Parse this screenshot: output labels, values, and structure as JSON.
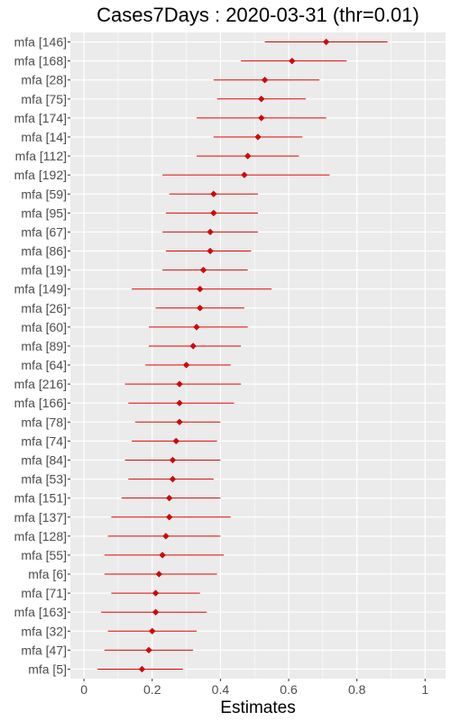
{
  "chart_data": {
    "type": "scatter",
    "subtype": "forest-plot",
    "title": "Cases7Days : 2020-03-31 (thr=0.01)",
    "xlabel": "Estimates",
    "ylabel": "",
    "xlim": [
      -0.04,
      1.06
    ],
    "xticks": [
      0,
      0.2,
      0.4,
      0.6,
      0.8,
      1
    ],
    "xtick_labels": [
      "0",
      "0.2",
      "0.4",
      "0.6",
      "0.8",
      "1"
    ],
    "grid": true,
    "legend": "none",
    "colors": {
      "panel": "#ebebeb",
      "grid": "#ffffff",
      "marker": "#e00000",
      "interval": "#e00000",
      "text": "#4d4d4d"
    },
    "categories": [
      "mfa [146]",
      "mfa [168]",
      "mfa [28]",
      "mfa [75]",
      "mfa [174]",
      "mfa [14]",
      "mfa [112]",
      "mfa [192]",
      "mfa [59]",
      "mfa [95]",
      "mfa [67]",
      "mfa [86]",
      "mfa [19]",
      "mfa [149]",
      "mfa [26]",
      "mfa [60]",
      "mfa [89]",
      "mfa [64]",
      "mfa [216]",
      "mfa [166]",
      "mfa [78]",
      "mfa [74]",
      "mfa [84]",
      "mfa [53]",
      "mfa [151]",
      "mfa [137]",
      "mfa [128]",
      "mfa [55]",
      "mfa [6]",
      "mfa [71]",
      "mfa [163]",
      "mfa [32]",
      "mfa [47]",
      "mfa [5]"
    ],
    "estimates": [
      0.71,
      0.61,
      0.53,
      0.52,
      0.52,
      0.51,
      0.48,
      0.47,
      0.38,
      0.38,
      0.37,
      0.37,
      0.35,
      0.34,
      0.34,
      0.33,
      0.32,
      0.3,
      0.28,
      0.28,
      0.28,
      0.27,
      0.26,
      0.26,
      0.25,
      0.25,
      0.24,
      0.23,
      0.22,
      0.21,
      0.21,
      0.2,
      0.19,
      0.17
    ],
    "lower": [
      0.53,
      0.46,
      0.38,
      0.39,
      0.33,
      0.38,
      0.33,
      0.23,
      0.25,
      0.24,
      0.23,
      0.24,
      0.23,
      0.14,
      0.21,
      0.19,
      0.19,
      0.18,
      0.12,
      0.13,
      0.15,
      0.14,
      0.12,
      0.13,
      0.11,
      0.08,
      0.07,
      0.06,
      0.06,
      0.08,
      0.05,
      0.07,
      0.06,
      0.04
    ],
    "upper": [
      0.89,
      0.77,
      0.69,
      0.65,
      0.71,
      0.64,
      0.63,
      0.72,
      0.51,
      0.51,
      0.51,
      0.49,
      0.48,
      0.55,
      0.47,
      0.48,
      0.46,
      0.43,
      0.46,
      0.44,
      0.4,
      0.39,
      0.4,
      0.38,
      0.4,
      0.43,
      0.4,
      0.41,
      0.39,
      0.34,
      0.36,
      0.33,
      0.32,
      0.29
    ]
  }
}
